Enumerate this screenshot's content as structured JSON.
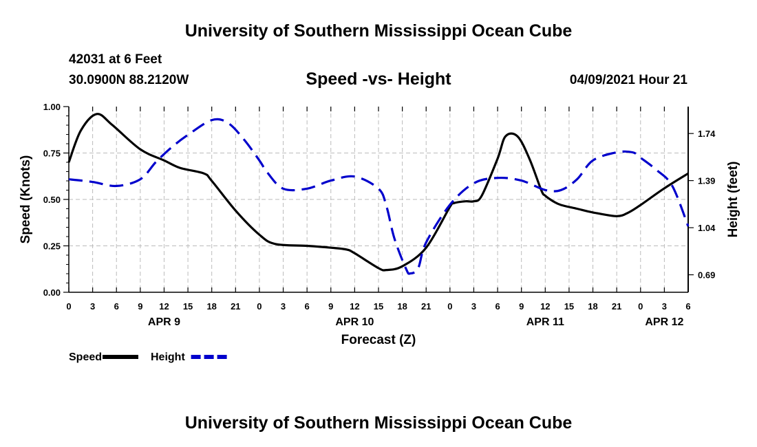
{
  "page": {
    "title_top": "University of Southern Mississippi Ocean Cube",
    "title_bottom": "University of Southern Mississippi Ocean Cube",
    "station": "42031 at 6 Feet",
    "coords": "30.0900N  88.2120W",
    "chart_title": "Speed -vs- Height",
    "timestamp": "04/09/2021 Hour 21"
  },
  "colors": {
    "speed": "#000000",
    "height": "#0000cc",
    "grid": "#bbbbbb",
    "axis": "#000000"
  },
  "chart_data": {
    "type": "line",
    "title": "Speed -vs- Height",
    "xlabel": "Forecast (Z)",
    "ylabel": "Speed (Knots)",
    "y2label": "Height (feet)",
    "x_hours": [
      0,
      78
    ],
    "x_tick_step_hours": 3,
    "x_tick_labels": [
      "0",
      "3",
      "6",
      "9",
      "12",
      "15",
      "18",
      "21",
      "0",
      "3",
      "6",
      "9",
      "12",
      "15",
      "18",
      "21",
      "0",
      "3",
      "6",
      "9",
      "12",
      "15",
      "18",
      "21",
      "0",
      "3",
      "6"
    ],
    "date_labels": [
      {
        "label": "APR 9",
        "hour": 12
      },
      {
        "label": "APR 10",
        "hour": 36
      },
      {
        "label": "APR 11",
        "hour": 60
      },
      {
        "label": "APR 12",
        "hour": 75
      }
    ],
    "ylim": [
      0,
      1.0
    ],
    "y_ticks": [
      0,
      0.25,
      0.5,
      0.75,
      1.0
    ],
    "y_tick_labels": [
      "0.00",
      "0.25",
      "0.50",
      "0.75",
      "1.00"
    ],
    "y2lim": [
      0.56,
      1.94
    ],
    "y2_ticks": [
      0.69,
      1.04,
      1.39,
      1.74
    ],
    "y2_tick_labels": [
      "0.69",
      "1.04",
      "1.39",
      "1.74"
    ],
    "legend": [
      {
        "label": "Speed",
        "series": "speed"
      },
      {
        "label": "Height",
        "series": "height"
      }
    ],
    "series": [
      {
        "name": "Speed",
        "key": "speed",
        "axis": "left",
        "style": "solid",
        "x": [
          0,
          1.5,
          3.5,
          5.5,
          9,
          12,
          14,
          17,
          18,
          21,
          24,
          26,
          30,
          33,
          35,
          36,
          39,
          40,
          42,
          45,
          48,
          48.5,
          50,
          51,
          52,
          54,
          55,
          56.5,
          58,
          59.5,
          60,
          61,
          62,
          64,
          66,
          69,
          70.5,
          72,
          75,
          78
        ],
        "y": [
          0.7,
          0.87,
          0.96,
          0.9,
          0.77,
          0.71,
          0.67,
          0.64,
          0.6,
          0.44,
          0.31,
          0.26,
          0.25,
          0.24,
          0.23,
          0.21,
          0.13,
          0.12,
          0.14,
          0.24,
          0.46,
          0.48,
          0.49,
          0.49,
          0.52,
          0.72,
          0.84,
          0.84,
          0.72,
          0.55,
          0.52,
          0.49,
          0.47,
          0.45,
          0.43,
          0.41,
          0.43,
          0.47,
          0.56,
          0.64
        ]
      },
      {
        "name": "Height",
        "key": "height",
        "axis": "right",
        "style": "dashed",
        "x": [
          0,
          3,
          6,
          9,
          11,
          13,
          15,
          18,
          20,
          22,
          24,
          25,
          27,
          30,
          33,
          36,
          39,
          40,
          41,
          42.5,
          43,
          44,
          45,
          48,
          51,
          54,
          57,
          60,
          62,
          64,
          66,
          69,
          71,
          72,
          74,
          76,
          78
        ],
        "y": [
          1.4,
          1.38,
          1.35,
          1.4,
          1.53,
          1.64,
          1.73,
          1.84,
          1.82,
          1.7,
          1.54,
          1.45,
          1.33,
          1.33,
          1.39,
          1.42,
          1.33,
          1.2,
          0.96,
          0.73,
          0.7,
          0.74,
          0.93,
          1.21,
          1.37,
          1.41,
          1.39,
          1.32,
          1.32,
          1.4,
          1.54,
          1.6,
          1.6,
          1.56,
          1.47,
          1.35,
          1.05
        ]
      }
    ]
  }
}
